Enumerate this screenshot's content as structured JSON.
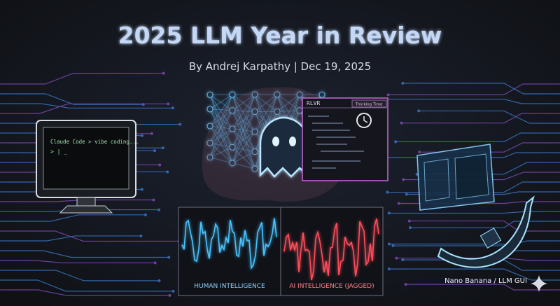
{
  "header": {
    "title": "2025 LLM Year in Review",
    "byline": "By Andrej Karpathy | Dec 19, 2025"
  },
  "terminal": {
    "prompt": "Claude Code > vibe coding...",
    "cursor": "> | _"
  },
  "code_panel": {
    "title": "RLVR",
    "badge": "Thinking Time"
  },
  "chart": {
    "left_label": "HUMAN INTELLIGENCE",
    "right_label": "AI INTELLIGENCE (JAGGED)"
  },
  "caption": "Nano Banana / LLM GUI"
}
